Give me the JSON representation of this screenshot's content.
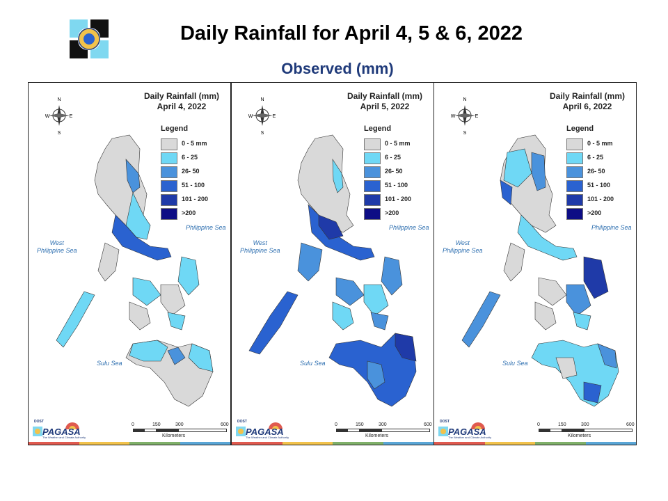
{
  "header": {
    "title": "Daily Rainfall for April 4, 5 & 6, 2022",
    "subtitle": "Observed (mm)"
  },
  "legend": {
    "title": "Legend",
    "items": [
      {
        "label": "0 - 5 mm",
        "color": "#d9d9d9"
      },
      {
        "label": "6 - 25",
        "color": "#6fd8f5"
      },
      {
        "label": "26- 50",
        "color": "#4a92dc"
      },
      {
        "label": "51 - 100",
        "color": "#2a62d0"
      },
      {
        "label": "101 - 200",
        "color": "#1f3aa8"
      },
      {
        "label": ">200",
        "color": "#0d0d85"
      }
    ]
  },
  "panels": [
    {
      "title_line1": "Daily Rainfall (mm)",
      "title_line2": "April 4, 2022"
    },
    {
      "title_line1": "Daily Rainfall (mm)",
      "title_line2": "April 5, 2022"
    },
    {
      "title_line1": "Daily Rainfall (mm)",
      "title_line2": "April 6, 2022"
    }
  ],
  "seas": {
    "west_line1": "West",
    "west_line2": "Philippine Sea",
    "east": "Philippine Sea",
    "sulu": "Sulu Sea"
  },
  "scale": {
    "ticks": [
      "0",
      "150",
      "300",
      "600"
    ],
    "unit": "Kilometers"
  },
  "compass": {
    "n": "N",
    "s": "S",
    "e": "E",
    "w": "W"
  },
  "brand": {
    "name": "PAGASA",
    "agency": "DOST",
    "tagline": "The Weather and Climate Authority"
  },
  "colors": {
    "title": "#000000",
    "subtitle": "#1f3a7a",
    "sea_label": "#2e6fb0",
    "stripe": [
      "#e05a4f",
      "#f2c24b",
      "#7fb069",
      "#5aa6d6"
    ]
  },
  "icons": [
    "pagasa-logo-icon",
    "compass-rose-icon",
    "pagasa-brand-icon"
  ]
}
